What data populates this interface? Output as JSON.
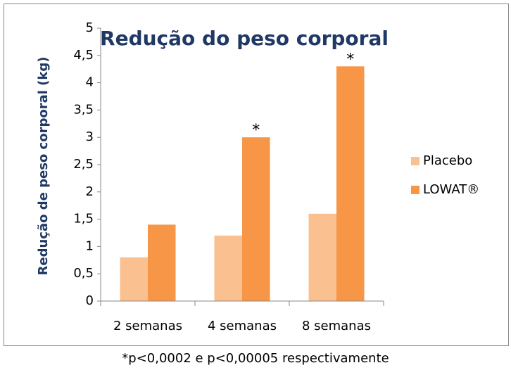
{
  "chart_data": {
    "type": "bar",
    "title": "Redução do peso corporal",
    "y_label": "Redução de peso corporal (kg)",
    "categories": [
      "2 semanas",
      "4 semanas",
      "8 semanas"
    ],
    "series": [
      {
        "name": "Placebo",
        "color": "#fac090",
        "values": [
          0.8,
          1.2,
          1.6
        ]
      },
      {
        "name": "LOWAT®",
        "color": "#f79646",
        "values": [
          1.4,
          3.0,
          4.3
        ]
      }
    ],
    "ylim": [
      0,
      5
    ],
    "yticks": [
      0,
      {
        "value": 0.5,
        "label": "0,5"
      },
      1,
      {
        "value": 1.5,
        "label": "1,5"
      },
      2,
      {
        "value": 2.5,
        "label": "2,5"
      },
      3,
      {
        "value": 3.5,
        "label": "3,5"
      },
      4,
      {
        "value": 4.5,
        "label": "4,5"
      },
      5
    ],
    "annotations": [
      {
        "text": "*",
        "category": "4 semanas",
        "series": "LOWAT®"
      },
      {
        "text": "*",
        "category": "8 semanas",
        "series": "LOWAT®"
      }
    ],
    "legend": "right",
    "footnote": "*p<0,0002 e p<0,00005 respectivamente"
  }
}
